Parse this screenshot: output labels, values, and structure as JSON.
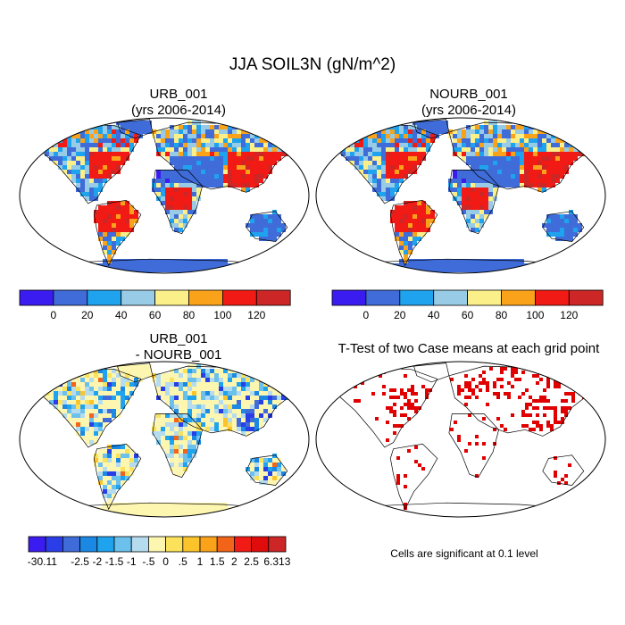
{
  "title": "JJA SOIL3N (gN/m^2)",
  "panels": [
    {
      "id": "urb",
      "title_line1": "URB_001",
      "title_line2": "(yrs 2006-2014)"
    },
    {
      "id": "nourb",
      "title_line1": "NOURB_001",
      "title_line2": "(yrs 2006-2014)"
    },
    {
      "id": "diff",
      "title_line1": "URB_001",
      "title_line2": "- NOURB_001"
    },
    {
      "id": "ttest",
      "title_line1": "T-Test of two Case means at each grid point",
      "title_line2": ""
    }
  ],
  "colorbar_abs": {
    "colors": [
      "#3b1cf0",
      "#3f6cd8",
      "#1fa3ee",
      "#97cbe6",
      "#fbef8a",
      "#f9a21a",
      "#f21a14",
      "#cc2626"
    ],
    "labels": [
      "0",
      "20",
      "40",
      "60",
      "80",
      "100",
      "120"
    ]
  },
  "colorbar_diff": {
    "colors": [
      "#3b1cf0",
      "#2a3ee8",
      "#3f6cd8",
      "#1b88e4",
      "#1fa3ee",
      "#6cc0ec",
      "#b4dcee",
      "#fdf6b0",
      "#fbe25a",
      "#fbc42a",
      "#f9a21a",
      "#f2641a",
      "#f21a14",
      "#e00c0c",
      "#cc2626"
    ],
    "labels": [
      "-30.11",
      "-2.5",
      "-2",
      "-1.5",
      "-1",
      "-.5",
      "0",
      ".5",
      "1",
      "1.5",
      "2",
      "2.5",
      "6.313"
    ]
  },
  "significance_note": "Cells are significant at 0.1 level",
  "significance_color": "#e00000"
}
